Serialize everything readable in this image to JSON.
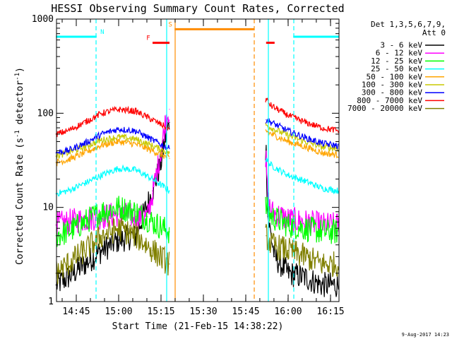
{
  "chart_data": {
    "type": "line",
    "title": "HESSI Observing Summary Count Rates, Corrected",
    "xlabel": "Start Time (21-Feb-15 14:38:22)",
    "ylabel": "Corrected Count Rate (s",
    "ylabel_sup": "-1",
    "ylabel_mid": " detector",
    "ylabel_end": ")",
    "y_scale": "log",
    "ylim": [
      1,
      1000
    ],
    "xlim": [
      14.6333,
      16.3
    ],
    "x_ticks": [
      {
        "value": 14.75,
        "label": "14:45"
      },
      {
        "value": 15.0,
        "label": "15:00"
      },
      {
        "value": 15.25,
        "label": "15:15"
      },
      {
        "value": 15.5,
        "label": "15:30"
      },
      {
        "value": 15.75,
        "label": "15:45"
      },
      {
        "value": 16.0,
        "label": "16:00"
      },
      {
        "value": 16.25,
        "label": "16:15"
      }
    ],
    "y_ticks": [
      {
        "value": 1,
        "label": "1"
      },
      {
        "value": 10,
        "label": "10"
      },
      {
        "value": 100,
        "label": "100"
      },
      {
        "value": 1000,
        "label": "1000"
      }
    ],
    "legend": {
      "placement": "right",
      "header": [
        "Det 1,3,5,6,7,9,",
        "Att 0"
      ]
    },
    "segments": [
      [
        14.6333,
        15.3
      ],
      [
        15.8667,
        16.3
      ]
    ],
    "series": [
      {
        "name": "3 - 6 keV",
        "color": "#000000",
        "x": [
          14.63,
          14.7,
          14.8,
          14.9,
          15.0,
          15.1,
          15.2,
          15.25,
          15.27,
          15.3,
          15.87,
          15.88,
          15.92,
          16.0,
          16.1,
          16.2,
          16.3
        ],
        "y": [
          1.5,
          1.8,
          2.5,
          3.5,
          4.5,
          5.0,
          15,
          30,
          50,
          80,
          40,
          8,
          3,
          2,
          1.8,
          1.5,
          1.5
        ]
      },
      {
        "name": "6 - 12 keV",
        "color": "#ff00ff",
        "x": [
          14.63,
          14.7,
          14.8,
          14.9,
          15.0,
          15.1,
          15.17,
          15.2,
          15.25,
          15.28,
          15.3,
          15.87,
          15.88,
          15.9,
          16.0,
          16.1,
          16.2,
          16.3
        ],
        "y": [
          6.5,
          7.0,
          7.5,
          8.0,
          8.5,
          8.0,
          8.0,
          14,
          40,
          90,
          110,
          30,
          12,
          9,
          7.5,
          7.0,
          6.5,
          6.5
        ]
      },
      {
        "name": "12 - 25 keV",
        "color": "#00ff00",
        "x": [
          14.63,
          14.7,
          14.8,
          14.9,
          15.0,
          15.1,
          15.2,
          15.3,
          15.87,
          15.9,
          16.0,
          16.1,
          16.2,
          16.3
        ],
        "y": [
          5.0,
          5.5,
          7.0,
          9.0,
          10.0,
          9.0,
          7.0,
          5.5,
          10.0,
          8.0,
          6.5,
          6.0,
          5.5,
          5.5
        ]
      },
      {
        "name": "25 - 50 keV",
        "color": "#00ffff",
        "x": [
          14.63,
          14.7,
          14.8,
          14.9,
          15.0,
          15.1,
          15.2,
          15.3,
          15.87,
          15.9,
          16.0,
          16.1,
          16.2,
          16.3
        ],
        "y": [
          14,
          15,
          18,
          22,
          26,
          25,
          20,
          15,
          32,
          28,
          22,
          19,
          16,
          15
        ]
      },
      {
        "name": "50 - 100 keV",
        "color": "#ffa500",
        "x": [
          14.63,
          14.7,
          14.8,
          14.9,
          15.0,
          15.1,
          15.2,
          15.3,
          15.87,
          15.9,
          16.0,
          16.1,
          16.2,
          16.3
        ],
        "y": [
          30,
          32,
          38,
          46,
          50,
          47,
          40,
          33,
          65,
          60,
          50,
          44,
          38,
          36
        ]
      },
      {
        "name": "100 - 300 keV",
        "color": "#c8c800",
        "x": [
          14.63,
          14.7,
          14.8,
          14.9,
          15.0,
          15.1,
          15.2,
          15.3,
          15.87,
          15.9,
          16.0,
          16.1,
          16.2,
          16.3
        ],
        "y": [
          35,
          38,
          44,
          52,
          56,
          53,
          45,
          38,
          75,
          70,
          58,
          50,
          44,
          42
        ]
      },
      {
        "name": "300 - 800 keV",
        "color": "#0000ff",
        "x": [
          14.63,
          14.7,
          14.8,
          14.9,
          15.0,
          15.1,
          15.2,
          15.3,
          15.87,
          15.9,
          16.0,
          16.1,
          16.2,
          16.3
        ],
        "y": [
          38,
          40,
          48,
          60,
          68,
          65,
          52,
          42,
          85,
          80,
          65,
          55,
          48,
          45
        ]
      },
      {
        "name": "800 - 7000 keV",
        "color": "#ff0000",
        "x": [
          14.63,
          14.7,
          14.8,
          14.9,
          15.0,
          15.1,
          15.2,
          15.3,
          15.87,
          15.9,
          16.0,
          16.1,
          16.2,
          16.3
        ],
        "y": [
          60,
          65,
          80,
          100,
          110,
          105,
          85,
          68,
          140,
          120,
          95,
          80,
          70,
          65
        ]
      },
      {
        "name": "7000 - 20000 keV",
        "color": "#808000",
        "x": [
          14.63,
          14.7,
          14.8,
          14.9,
          15.0,
          15.1,
          15.2,
          15.3,
          15.87,
          15.9,
          16.0,
          16.1,
          16.2,
          16.3
        ],
        "y": [
          2.0,
          2.5,
          3.5,
          5.0,
          6.0,
          5.0,
          3.5,
          2.5,
          5.0,
          4.0,
          3.5,
          3.0,
          2.5,
          2.5
        ]
      }
    ],
    "bars": [
      {
        "label": "N",
        "color": "#00ffff",
        "y": 650,
        "spans": [
          [
            14.63,
            14.87
          ],
          [
            16.03,
            16.3
          ]
        ]
      },
      {
        "label": "F",
        "color": "#ff0000",
        "y": 560,
        "spans": [
          [
            15.2,
            15.3
          ],
          [
            15.87,
            15.92
          ]
        ]
      },
      {
        "label": "S",
        "color": "#ff8c00",
        "y": 780,
        "spans": [
          [
            15.33,
            15.8
          ]
        ]
      }
    ],
    "vlines": [
      {
        "x": 14.8667,
        "color": "#00ffff",
        "style": "dashed"
      },
      {
        "x": 16.0333,
        "color": "#00ffff",
        "style": "dashed"
      },
      {
        "x": 15.2833,
        "color": "#00ffff",
        "style": "solid"
      },
      {
        "x": 15.8833,
        "color": "#00ffff",
        "style": "solid"
      },
      {
        "x": 15.3333,
        "color": "#ff8c00",
        "style": "solid"
      },
      {
        "x": 15.8,
        "color": "#ff8c00",
        "style": "dashed"
      }
    ]
  },
  "footer_timestamp": "9-Aug-2017 14:23"
}
